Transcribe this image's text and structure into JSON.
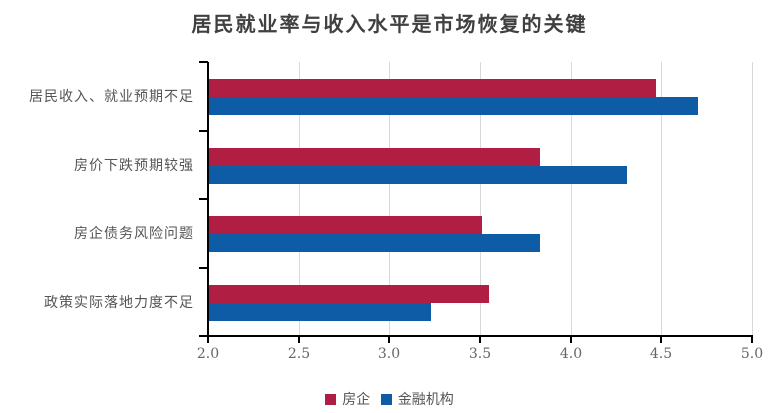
{
  "chart_data": {
    "type": "bar",
    "orientation": "horizontal",
    "title": "居民就业率与收入水平是市场恢复的关键",
    "categories": [
      "居民收入、就业预期不足",
      "房价下跌预期较强",
      "房企债务风险问题",
      "政策实际落地力度不足"
    ],
    "series": [
      {
        "name": "房企",
        "color": "#B01E44",
        "values": [
          4.47,
          3.83,
          3.51,
          3.55
        ]
      },
      {
        "name": "金融机构",
        "color": "#0F5CA6",
        "values": [
          4.7,
          4.31,
          3.83,
          3.23
        ]
      }
    ],
    "xlabel": "",
    "ylabel": "",
    "xlim": [
      2.0,
      5.0
    ],
    "xticks": [
      "2.0",
      "2.5",
      "3.0",
      "3.5",
      "4.0",
      "4.5",
      "5.0"
    ],
    "grid": "vertical",
    "legend_position": "bottom"
  },
  "title": "居民就业率与收入水平是市场恢复的关键",
  "legend": [
    {
      "label": "房企",
      "color": "#B01E44"
    },
    {
      "label": "金融机构",
      "color": "#0F5CA6"
    }
  ]
}
